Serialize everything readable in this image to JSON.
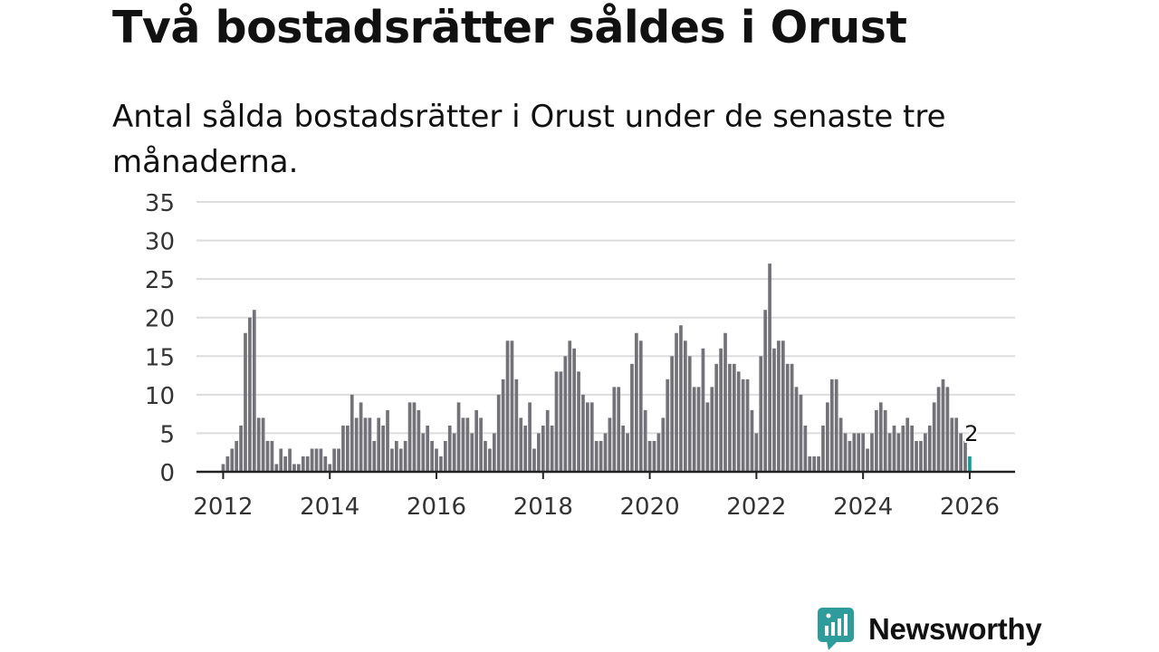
{
  "title": "Två bostadsrätter såldes i Orust",
  "subtitle": "Antal sålda bostadsrätter i Orust under de senaste tre månaderna.",
  "brand": {
    "name": "Newsworthy",
    "logo_icon": "bar-chart-bubble-icon"
  },
  "colors": {
    "bar": "#737278",
    "highlight": "#0f9c9a",
    "brand": "#2f9c9c",
    "grid": "#dddddd",
    "axis": "#222222",
    "text": "#111111"
  },
  "chart_data": {
    "type": "bar",
    "title": "Två bostadsrätter såldes i Orust",
    "subtitle": "Antal sålda bostadsrätter i Orust under de senaste tre månaderna.",
    "xlabel": "",
    "ylabel": "",
    "ylim": [
      0,
      35
    ],
    "yticks": [
      0,
      5,
      10,
      15,
      20,
      25,
      30,
      35
    ],
    "xticks": [
      2012,
      2014,
      2016,
      2018,
      2020,
      2022,
      2024,
      2026
    ],
    "xlim": [
      2011.5,
      2026.85
    ],
    "grid": true,
    "start": "2012-01",
    "frequency": "monthly",
    "values": [
      1,
      2,
      3,
      4,
      6,
      18,
      20,
      21,
      7,
      7,
      4,
      4,
      1,
      3,
      2,
      3,
      1,
      1,
      2,
      2,
      3,
      3,
      3,
      2,
      1,
      3,
      3,
      6,
      6,
      10,
      7,
      9,
      7,
      7,
      4,
      7,
      6,
      8,
      3,
      4,
      3,
      4,
      9,
      9,
      8,
      5,
      6,
      4,
      3,
      2,
      4,
      6,
      5,
      9,
      7,
      7,
      5,
      8,
      7,
      4,
      3,
      5,
      10,
      12,
      17,
      17,
      12,
      7,
      6,
      9,
      3,
      5,
      6,
      8,
      6,
      13,
      13,
      15,
      17,
      16,
      13,
      10,
      9,
      9,
      4,
      4,
      5,
      7,
      11,
      11,
      6,
      5,
      14,
      18,
      17,
      8,
      4,
      4,
      5,
      7,
      12,
      15,
      18,
      19,
      17,
      15,
      11,
      11,
      16,
      9,
      11,
      14,
      16,
      18,
      14,
      14,
      13,
      12,
      12,
      8,
      5,
      15,
      21,
      27,
      16,
      17,
      17,
      14,
      14,
      11,
      10,
      6,
      2,
      2,
      2,
      6,
      9,
      12,
      12,
      7,
      5,
      4,
      5,
      5,
      5,
      3,
      5,
      8,
      9,
      8,
      5,
      6,
      5,
      6,
      7,
      6,
      4,
      4,
      5,
      6,
      9,
      11,
      12,
      11,
      7,
      7,
      5,
      4,
      2
    ],
    "highlight_last": 1,
    "annotation": {
      "label": "2",
      "value": 2
    }
  }
}
